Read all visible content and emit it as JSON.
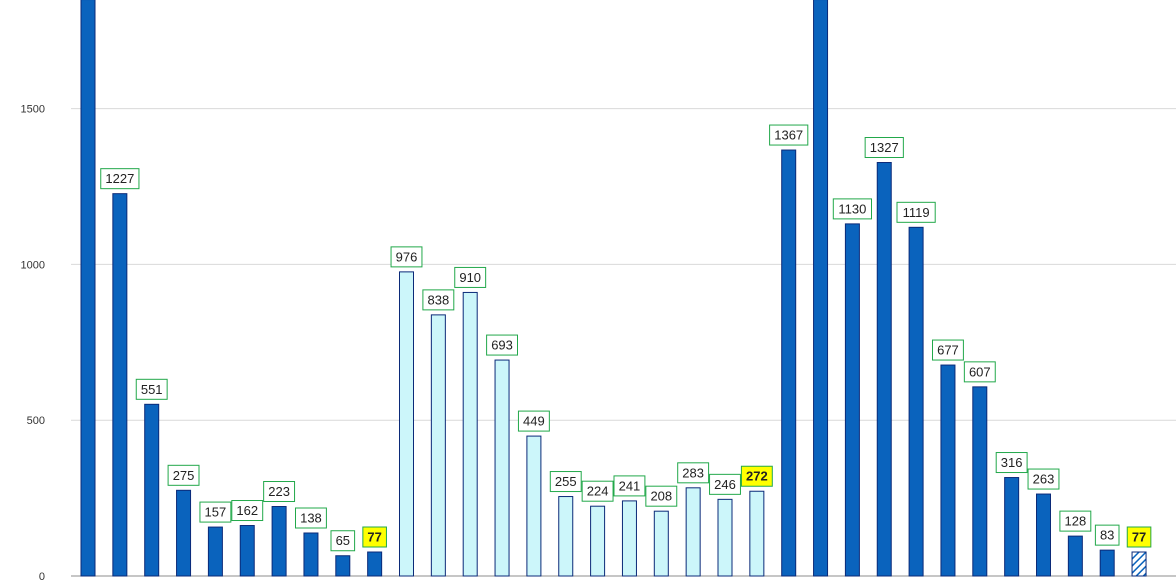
{
  "chart_data": {
    "type": "bar",
    "ylim": [
      0,
      1850
    ],
    "yticks": [
      0,
      500,
      1000,
      1500
    ],
    "grid": true,
    "colors": {
      "dark": "#0a63bd",
      "light": "#ccf6fa",
      "stroke": "#0b2a78",
      "label_border": "#22a84a",
      "highlight_fill": "#ffff00"
    },
    "series": [
      {
        "values": [
          1850,
          1227,
          551,
          275,
          157,
          162,
          223,
          138,
          65,
          77,
          976,
          838,
          910,
          693,
          449,
          255,
          224,
          241,
          208,
          283,
          246,
          272,
          1367,
          1850,
          1130,
          1327,
          1119,
          677,
          607,
          316,
          263,
          128,
          83,
          77
        ],
        "labels": [
          "",
          "1227",
          "551",
          "275",
          "157",
          "162",
          "223",
          "138",
          "65",
          "77",
          "976",
          "838",
          "910",
          "693",
          "449",
          "255",
          "224",
          "241",
          "208",
          "283",
          "246",
          "272",
          "1367",
          "",
          "1130",
          "1327",
          "1119",
          "677",
          "607",
          "316",
          "263",
          "128",
          "83",
          "77"
        ],
        "styles": [
          "dark",
          "dark",
          "dark",
          "dark",
          "dark",
          "dark",
          "dark",
          "dark",
          "dark",
          "dark",
          "light",
          "light",
          "light",
          "light",
          "light",
          "light",
          "light",
          "light",
          "light",
          "light",
          "light",
          "light",
          "dark",
          "dark",
          "dark",
          "dark",
          "dark",
          "dark",
          "dark",
          "dark",
          "dark",
          "dark",
          "dark",
          "hatched"
        ],
        "highlighted": [
          9,
          21,
          33
        ]
      }
    ]
  }
}
